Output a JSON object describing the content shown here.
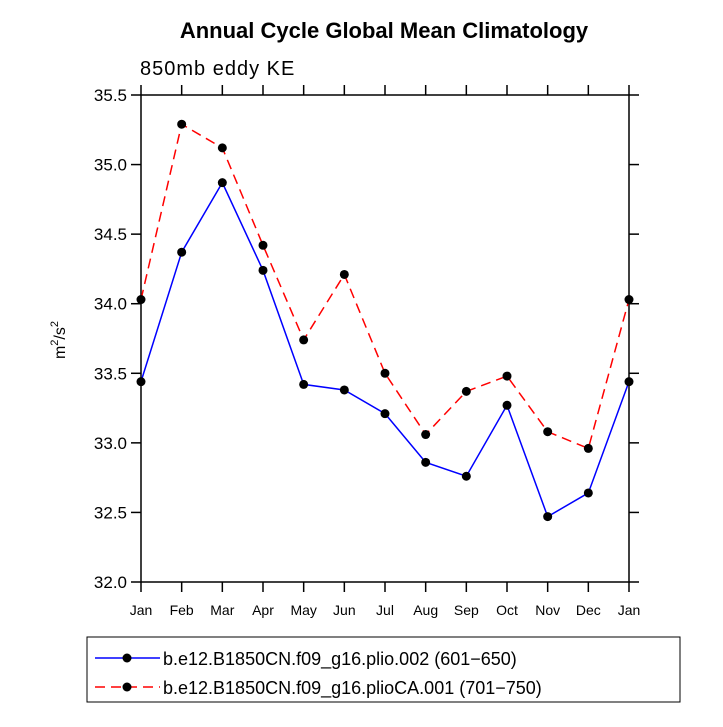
{
  "chart_data": {
    "type": "line",
    "title": "Annual Cycle Global Mean Climatology",
    "subtitle": "850mb eddy KE",
    "xlabel": "",
    "ylabel": "m2/s2",
    "ylabel_parts": {
      "base1": "m",
      "sup1": "2",
      "sep": "/s",
      "sup2": "2"
    },
    "ylim": [
      32.0,
      35.5
    ],
    "yticks": [
      32.0,
      32.5,
      33.0,
      33.5,
      34.0,
      34.5,
      35.0,
      35.5
    ],
    "ytick_labels": [
      "32.0",
      "32.5",
      "33.0",
      "33.5",
      "34.0",
      "34.5",
      "35.0",
      "35.5"
    ],
    "categories": [
      "Jan",
      "Feb",
      "Mar",
      "Apr",
      "May",
      "Jun",
      "Jul",
      "Aug",
      "Sep",
      "Oct",
      "Nov",
      "Dec",
      "Jan"
    ],
    "legend_position": "bottom",
    "series": [
      {
        "name": "b.e12.B1850CN.f09_g16.plio.002 (601−650)",
        "color": "#0000ff",
        "dash": "solid",
        "values": [
          33.44,
          34.37,
          34.87,
          34.24,
          33.42,
          33.38,
          33.21,
          32.86,
          32.76,
          33.27,
          32.47,
          32.64,
          33.44
        ]
      },
      {
        "name": "b.e12.B1850CN.f09_g16.plioCA.001 (701−750)",
        "color": "#ff0000",
        "dash": "dashed",
        "values": [
          34.03,
          35.29,
          35.12,
          34.42,
          33.74,
          34.21,
          33.5,
          33.06,
          33.37,
          33.48,
          33.08,
          32.96,
          34.03
        ]
      }
    ]
  }
}
